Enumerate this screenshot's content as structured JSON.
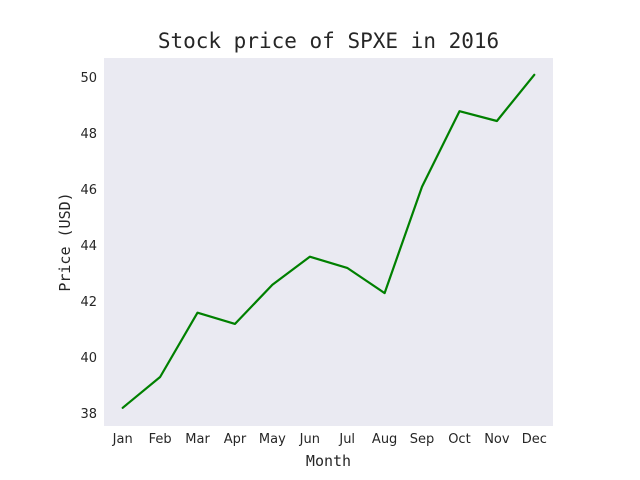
{
  "chart_data": {
    "type": "line",
    "title": "Stock price of SPXE in 2016",
    "xlabel": "Month",
    "ylabel": "Price (USD)",
    "categories": [
      "Jan",
      "Feb",
      "Mar",
      "Apr",
      "May",
      "Jun",
      "Jul",
      "Aug",
      "Sep",
      "Oct",
      "Nov",
      "Dec"
    ],
    "series": [
      {
        "values": [
          38.2,
          39.3,
          41.6,
          41.2,
          42.6,
          43.6,
          43.2,
          42.3,
          46.1,
          48.8,
          48.45,
          50.1
        ],
        "color": "#008000"
      }
    ],
    "yticks": [
      38,
      40,
      42,
      44,
      46,
      48,
      50
    ],
    "ylim": [
      37.55,
      50.7
    ],
    "grid": false,
    "plot_background": "#eaeaf2"
  }
}
